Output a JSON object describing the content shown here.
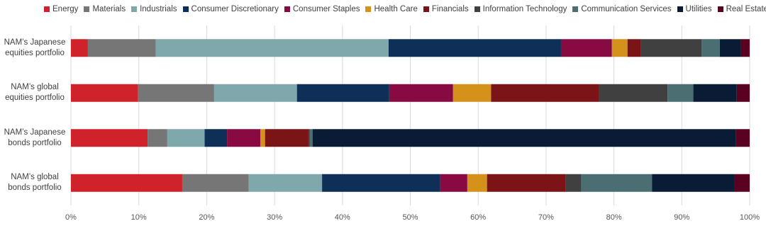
{
  "chart_data": {
    "type": "stacked-barh",
    "categories": [
      "NAM’s Japanese equities portfolio",
      "NAM’s global equities portfolio",
      "NAM’s Japanese bonds portfolio",
      "NAM’s global bonds portfolio"
    ],
    "series": [
      {
        "name": "Energy",
        "color": "#d0222a",
        "values": [
          2.5,
          9.9,
          11.3,
          16.4
        ]
      },
      {
        "name": "Materials",
        "color": "#767676",
        "values": [
          10.0,
          11.2,
          2.9,
          9.8
        ]
      },
      {
        "name": "Industrials",
        "color": "#7fa8ad",
        "values": [
          34.3,
          12.2,
          5.5,
          10.8
        ]
      },
      {
        "name": "Consumer Discretionary",
        "color": "#0e2f57",
        "values": [
          25.4,
          13.6,
          3.3,
          17.4
        ]
      },
      {
        "name": "Consumer Staples",
        "color": "#870a42",
        "values": [
          7.5,
          9.4,
          4.9,
          4.0
        ]
      },
      {
        "name": "Health Care",
        "color": "#d4921b",
        "values": [
          2.3,
          5.6,
          0.7,
          2.9
        ]
      },
      {
        "name": "Financials",
        "color": "#7a1416",
        "values": [
          2.0,
          15.9,
          6.4,
          11.6
        ]
      },
      {
        "name": "Information Technology",
        "color": "#404040",
        "values": [
          8.9,
          10.1,
          0.2,
          2.3
        ]
      },
      {
        "name": "Communication Services",
        "color": "#4a6e72",
        "values": [
          2.7,
          3.8,
          0.4,
          10.4
        ]
      },
      {
        "name": "Utilities",
        "color": "#0a1c35",
        "values": [
          3.1,
          6.4,
          62.4,
          12.2
        ]
      },
      {
        "name": "Real Estate",
        "color": "#5a0020",
        "values": [
          1.3,
          1.9,
          2.0,
          2.2
        ]
      }
    ],
    "xlim": [
      0,
      100
    ],
    "xticks": [
      {
        "value": 0,
        "label": "0%"
      },
      {
        "value": 10,
        "label": "10%"
      },
      {
        "value": 20,
        "label": "20%"
      },
      {
        "value": 30,
        "label": "30%"
      },
      {
        "value": 40,
        "label": "40%"
      },
      {
        "value": 50,
        "label": "50%"
      },
      {
        "value": 60,
        "label": "60%"
      },
      {
        "value": 70,
        "label": "70%"
      },
      {
        "value": 80,
        "label": "80%"
      },
      {
        "value": 90,
        "label": "90%"
      },
      {
        "value": 100,
        "label": "100%"
      }
    ],
    "grid": true
  }
}
